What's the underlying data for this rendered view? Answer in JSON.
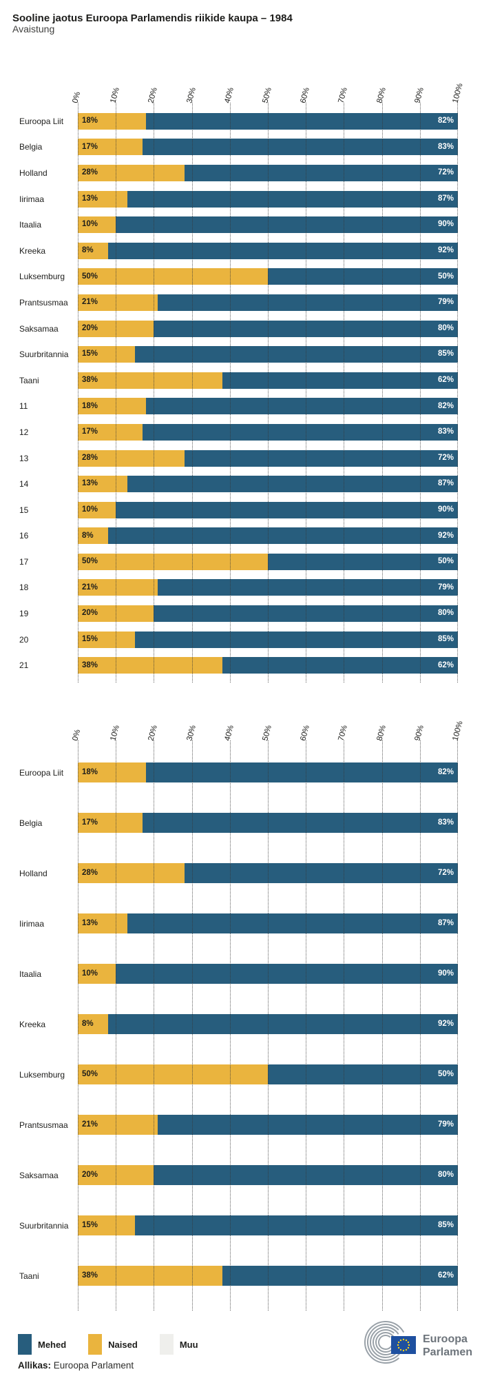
{
  "page": {
    "title": "Sooline jaotus Euroopa Parlamendis riikide kaupa – 1984",
    "subtitle": "Avaistung"
  },
  "axis_ticks": [
    "0%",
    "10%",
    "20%",
    "30%",
    "40%",
    "50%",
    "60%",
    "70%",
    "80%",
    "90%",
    "100%"
  ],
  "chart_data": [
    {
      "type": "bar",
      "orientation": "horizontal",
      "stacked": true,
      "xlim": [
        0,
        100
      ],
      "grid": true,
      "tick_labels_position": "top",
      "categories": [
        "Euroopa Liit",
        "Belgia",
        "Holland",
        "Iirimaa",
        "Itaalia",
        "Kreeka",
        "Luksemburg",
        "Prantsusmaa",
        "Saksamaa",
        "Suurbritannia",
        "Taani",
        "11",
        "12",
        "13",
        "14",
        "15",
        "16",
        "17",
        "18",
        "19",
        "20",
        "21"
      ],
      "series": [
        {
          "name": "Naised",
          "color": "#EAB43E",
          "values": [
            18,
            17,
            28,
            13,
            10,
            8,
            50,
            21,
            20,
            15,
            38,
            18,
            17,
            28,
            13,
            10,
            8,
            50,
            21,
            20,
            15,
            38
          ]
        },
        {
          "name": "Mehed",
          "color": "#275D7D",
          "values": [
            82,
            83,
            72,
            87,
            90,
            92,
            50,
            79,
            80,
            85,
            62,
            82,
            83,
            72,
            87,
            90,
            92,
            50,
            79,
            80,
            85,
            62
          ]
        }
      ]
    },
    {
      "type": "bar",
      "orientation": "horizontal",
      "stacked": true,
      "xlim": [
        0,
        100
      ],
      "grid": true,
      "tick_labels_position": "top",
      "categories": [
        "Euroopa Liit",
        "Belgia",
        "Holland",
        "Iirimaa",
        "Itaalia",
        "Kreeka",
        "Luksemburg",
        "Prantsusmaa",
        "Saksamaa",
        "Suurbritannia",
        "Taani"
      ],
      "series": [
        {
          "name": "Naised",
          "color": "#EAB43E",
          "values": [
            18,
            17,
            28,
            13,
            10,
            8,
            50,
            21,
            20,
            15,
            38
          ]
        },
        {
          "name": "Mehed",
          "color": "#275D7D",
          "values": [
            82,
            83,
            72,
            87,
            90,
            92,
            50,
            79,
            80,
            85,
            62
          ]
        }
      ]
    }
  ],
  "legend": {
    "position": "bottom-left",
    "items": [
      {
        "label": "Mehed",
        "color": "#275D7D"
      },
      {
        "label": "Naised",
        "color": "#EAB43E"
      },
      {
        "label": "Muu",
        "color": "#EFEFEC"
      }
    ]
  },
  "source": {
    "label": "Allikas:",
    "text": "Euroopa Parlament"
  },
  "logo": {
    "line1": "Euroopa",
    "line2": "Parlament"
  },
  "colors": {
    "mehed": "#275D7D",
    "naised": "#EAB43E",
    "muu": "#EFEFEC",
    "text": "#1D1D1B",
    "grid_dots": "#373737",
    "eu_flag_blue": "#1E50A0",
    "eu_star_yellow": "#FFD617",
    "logo_gray": "#6D747B"
  }
}
